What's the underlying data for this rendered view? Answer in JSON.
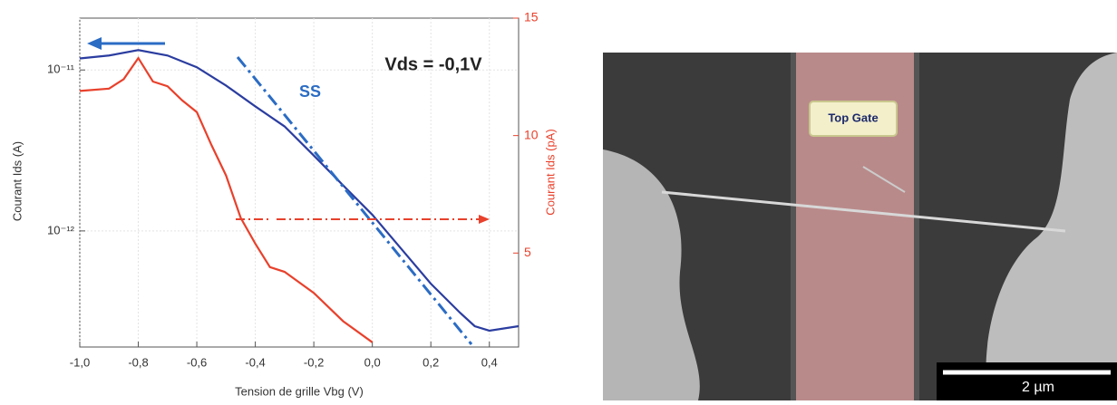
{
  "chart_data": {
    "type": "line",
    "xlabel": "Tension de grille Vbg (V)",
    "ylabel": "Courant Ids (A)",
    "y2label": "Courant Ids (pA)",
    "annotations": [
      "Vds = -0,1V",
      "SS"
    ],
    "xlim": [
      -1.0,
      0.5
    ],
    "xticks": [
      {
        "value": -1.0,
        "label": "-1,0"
      },
      {
        "value": -0.8,
        "label": "-0,8"
      },
      {
        "value": -0.6,
        "label": "-0,6"
      },
      {
        "value": -0.4,
        "label": "-0,4"
      },
      {
        "value": -0.2,
        "label": "-0,2"
      },
      {
        "value": 0.0,
        "label": "0,0"
      },
      {
        "value": 0.2,
        "label": "0,2"
      },
      {
        "value": 0.4,
        "label": "0,4"
      }
    ],
    "yscale": "log",
    "ylim": [
      1.9e-13,
      2.1e-11
    ],
    "yticks": [
      {
        "value": 1e-12,
        "label": "10⁻¹²"
      },
      {
        "value": 1e-11,
        "label": "10⁻¹¹"
      }
    ],
    "y2lim": [
      1,
      15
    ],
    "y2ticks": [
      5,
      10,
      15
    ],
    "y2color": "#e8412c",
    "grid": true,
    "series": [
      {
        "color": "#2b3da0",
        "x": [
          -1.0,
          -0.9,
          -0.8,
          -0.7,
          -0.6,
          -0.5,
          -0.4,
          -0.3,
          -0.2,
          -0.1,
          0.0,
          0.1,
          0.2,
          0.3,
          0.35,
          0.4,
          0.5
        ],
        "values": [
          1.18e-11,
          1.23e-11,
          1.33e-11,
          1.23e-11,
          1.04e-11,
          8e-12,
          5.94e-12,
          4.46e-12,
          2.94e-12,
          1.92e-12,
          1.26e-12,
          7.7e-13,
          4.7e-13,
          3.1e-13,
          2.56e-13,
          2.4e-13,
          2.56e-13
        ]
      },
      {
        "color": "#e8412c",
        "axis": "y2",
        "x": [
          -1.0,
          -0.9,
          -0.85,
          -0.8,
          -0.75,
          -0.7,
          -0.65,
          -0.6,
          -0.55,
          -0.5,
          -0.45,
          -0.4,
          -0.35,
          -0.3,
          -0.2,
          -0.1,
          0.0
        ],
        "values": [
          11.9,
          12.0,
          12.4,
          13.3,
          12.3,
          12.1,
          11.5,
          11.0,
          9.6,
          8.3,
          6.5,
          5.4,
          4.4,
          4.2,
          3.3,
          2.1,
          1.2
        ]
      }
    ]
  },
  "image": {
    "gate_label": "Top Gate",
    "scale_bar": "2 µm"
  }
}
